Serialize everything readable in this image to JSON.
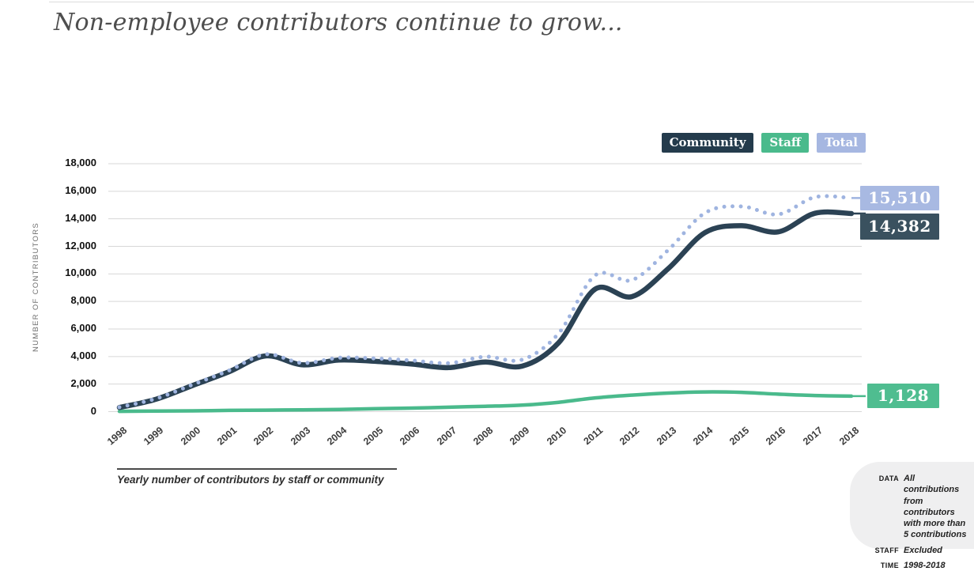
{
  "header": {
    "title": "Non-employee contributors continue to grow..."
  },
  "legend": {
    "items": [
      {
        "label": "Community",
        "color": "#243b4c"
      },
      {
        "label": "Staff",
        "color": "#4aba8c"
      },
      {
        "label": "Total",
        "color": "#a6b7e1"
      }
    ]
  },
  "chart_data": {
    "type": "line",
    "title": "Non-employee contributors continue to grow...",
    "xlabel": "",
    "ylabel": "NUMBER OF CONTRIBUTORS",
    "x": [
      1998,
      1999,
      2000,
      2001,
      2002,
      2003,
      2004,
      2005,
      2006,
      2007,
      2008,
      2009,
      2010,
      2011,
      2012,
      2013,
      2014,
      2015,
      2016,
      2017,
      2018
    ],
    "ylim": [
      0,
      18000
    ],
    "ytick_step": 2000,
    "yticks": [
      "0",
      "2,000",
      "4,000",
      "6,000",
      "8,000",
      "10,000",
      "12,000",
      "14,000",
      "16,000",
      "18,000"
    ],
    "grid": true,
    "legend_position": "top-right",
    "series": [
      {
        "name": "Community",
        "style": "solid",
        "color": "#2b4254",
        "badge_color": "#3a515f",
        "end_label": "14,382",
        "values": [
          300,
          900,
          1900,
          2900,
          4050,
          3400,
          3750,
          3650,
          3450,
          3200,
          3600,
          3300,
          5000,
          8900,
          8350,
          10400,
          13000,
          13500,
          13050,
          14400,
          14382
        ]
      },
      {
        "name": "Staff",
        "style": "solid",
        "color": "#4aba8c",
        "badge_color": "#4fbd90",
        "end_label": "1,128",
        "values": [
          20,
          40,
          60,
          90,
          110,
          130,
          160,
          210,
          260,
          320,
          390,
          470,
          680,
          1000,
          1200,
          1350,
          1430,
          1400,
          1270,
          1170,
          1128
        ]
      },
      {
        "name": "Total",
        "style": "dotted",
        "color": "#9fb4e0",
        "badge_color": "#a8b9e2",
        "end_label": "15,510",
        "values": [
          320,
          940,
          1960,
          2990,
          4160,
          3530,
          3910,
          3860,
          3710,
          3520,
          3990,
          3770,
          5680,
          9900,
          9550,
          11750,
          14430,
          14900,
          14320,
          15570,
          15510
        ]
      }
    ]
  },
  "caption": "Yearly number of contributors by staff or community",
  "info_panel": {
    "rows": [
      {
        "label": "DATA",
        "value": "All contributions from contributors with more than 5 contributions"
      },
      {
        "label": "STAFF",
        "value": "Excluded"
      },
      {
        "label": "TIME",
        "value": "1998-2018"
      }
    ]
  }
}
